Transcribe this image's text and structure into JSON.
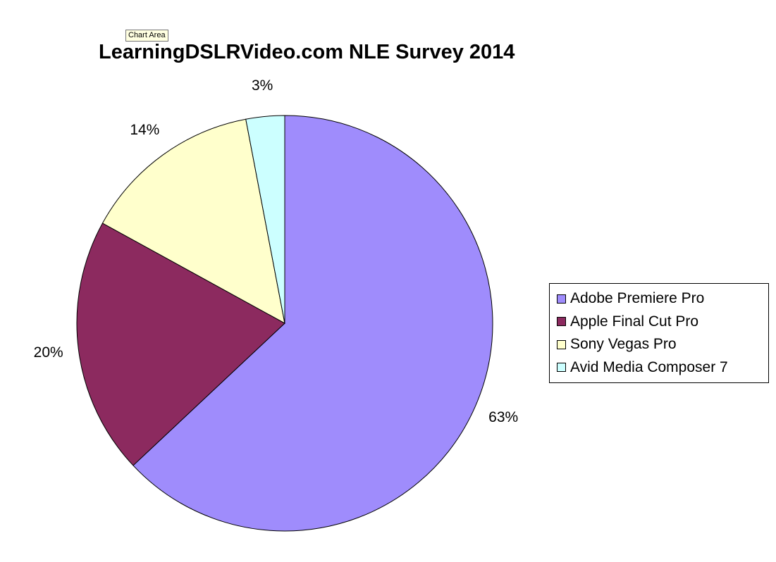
{
  "tooltip": {
    "text": "Chart Area"
  },
  "chart_data": {
    "type": "pie",
    "title": "LearningDSLRVideo.com NLE Survey 2014",
    "start_angle_deg": 0,
    "direction": "clockwise",
    "legend_position": "right",
    "slices": [
      {
        "name": "Adobe Premiere Pro",
        "value": 63,
        "label": "63%",
        "color": "#9f8cfc"
      },
      {
        "name": "Apple Final Cut Pro",
        "value": 20,
        "label": "20%",
        "color": "#8c2a5f"
      },
      {
        "name": "Sony Vegas Pro",
        "value": 14,
        "label": "14%",
        "color": "#ffffcc"
      },
      {
        "name": "Avid Media Composer 7",
        "value": 3,
        "label": "3%",
        "color": "#ccffff"
      }
    ]
  }
}
